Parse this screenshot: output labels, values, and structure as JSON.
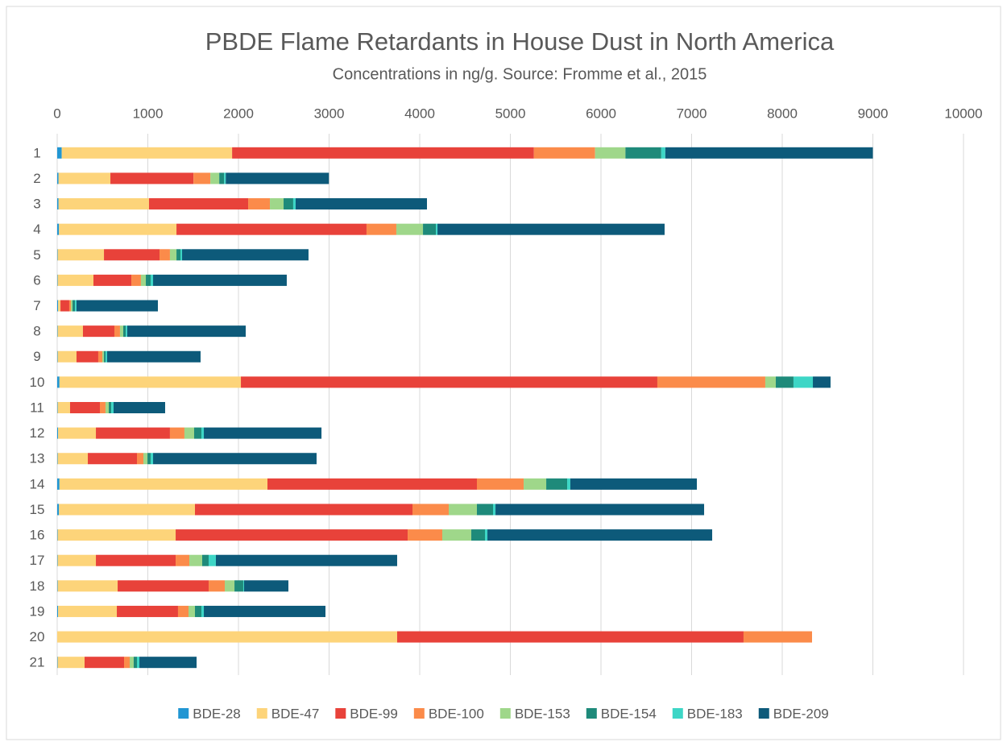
{
  "chart_data": {
    "type": "stacked-bar-horizontal",
    "title": "PBDE Flame Retardants in House Dust in North America",
    "subtitle": "Concentrations in ng/g. Source: Fromme et al., 2015",
    "categories": [
      "1",
      "2",
      "3",
      "4",
      "5",
      "6",
      "7",
      "8",
      "9",
      "10",
      "11",
      "12",
      "13",
      "14",
      "15",
      "16",
      "17",
      "18",
      "19",
      "20",
      "21"
    ],
    "xlim": [
      0,
      10000
    ],
    "xticks": [
      0,
      1000,
      2000,
      3000,
      4000,
      5000,
      6000,
      7000,
      8000,
      9000,
      10000
    ],
    "grid": true,
    "legend": "bottom",
    "series": [
      {
        "name": "BDE-28",
        "color": "#2196d3",
        "values": [
          50,
          15,
          15,
          20,
          5,
          5,
          10,
          5,
          5,
          25,
          5,
          10,
          5,
          25,
          20,
          5,
          5,
          5,
          10,
          0,
          5
        ]
      },
      {
        "name": "BDE-47",
        "color": "#fdd47a",
        "values": [
          1880,
          572,
          998,
          1296,
          511,
          395,
          26,
          279,
          208,
          2002,
          137,
          417,
          333,
          2295,
          1500,
          1302,
          422,
          662,
          648,
          3751,
          297
        ]
      },
      {
        "name": "BDE-99",
        "color": "#e8423a",
        "values": [
          3330,
          917,
          1094,
          2097,
          613,
          418,
          97,
          347,
          240,
          4595,
          329,
          817,
          542,
          2311,
          2400,
          2560,
          880,
          1004,
          675,
          3822,
          436
        ]
      },
      {
        "name": "BDE-100",
        "color": "#fb8b4a",
        "values": [
          675,
          186,
          240,
          329,
          115,
          106,
          18,
          62,
          45,
          1191,
          62,
          160,
          71,
          516,
          400,
          382,
          151,
          178,
          116,
          756,
          62
        ]
      },
      {
        "name": "BDE-153",
        "color": "#9fd78a",
        "values": [
          335,
          98,
          151,
          294,
          72,
          54,
          18,
          36,
          18,
          116,
          36,
          107,
          45,
          249,
          311,
          320,
          142,
          107,
          71,
          0,
          44
        ]
      },
      {
        "name": "BDE-154",
        "color": "#1e8a7a",
        "values": [
          395,
          54,
          106,
          142,
          44,
          53,
          27,
          27,
          17,
          195,
          27,
          80,
          35,
          231,
          178,
          151,
          71,
          97,
          71,
          0,
          36
        ]
      },
      {
        "name": "BDE-183",
        "color": "#3dd6c6",
        "values": [
          45,
          18,
          27,
          18,
          18,
          27,
          17,
          17,
          18,
          214,
          26,
          27,
          27,
          35,
          27,
          27,
          80,
          9,
          27,
          0,
          27
        ]
      },
      {
        "name": "BDE-209",
        "color": "#0d5a7a",
        "values": [
          2290,
          1138,
          1449,
          2506,
          1395,
          1475,
          898,
          1307,
          1031,
          195,
          569,
          1298,
          1804,
          1396,
          2302,
          2480,
          2000,
          489,
          1342,
          0,
          631
        ]
      }
    ]
  }
}
